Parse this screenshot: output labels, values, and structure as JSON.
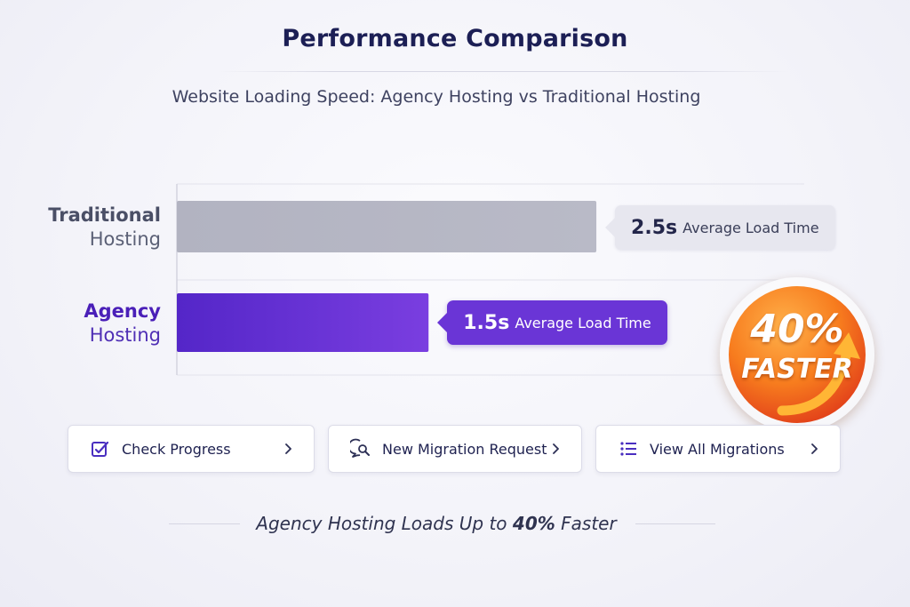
{
  "title": "Performance Comparison",
  "subtitle": "Website Loading Speed: Agency Hosting vs Traditional Hosting",
  "chart_data": {
    "type": "bar",
    "orientation": "horizontal",
    "categories": [
      "Traditional Hosting",
      "Agency Hosting"
    ],
    "category_lines": [
      [
        "Traditional",
        "Hosting"
      ],
      [
        "Agency",
        "Hosting"
      ]
    ],
    "values": [
      2.5,
      1.5
    ],
    "value_labels": [
      "2.5s",
      "1.5s"
    ],
    "unit": "s",
    "annotation": "Average Load Time",
    "xlim": [
      0,
      3.4
    ],
    "grid": true,
    "legend": "none",
    "colors": {
      "traditional": "#b5b6c3",
      "agency": "#5a2ad0",
      "agency_light": "#7b3fe0"
    }
  },
  "badge": {
    "percent": "40%",
    "word": "FASTER",
    "arrow_icon": "curved-up-arrow-icon"
  },
  "buttons": [
    {
      "label": "Check Progress",
      "icon": "edit-check-icon"
    },
    {
      "label": "New Migration Request",
      "icon": "chat-search-icon"
    },
    {
      "label": "View All Migrations",
      "icon": "list-icon"
    }
  ],
  "footer": {
    "prefix": "Agency Hosting Loads Up to ",
    "highlight": "40%",
    "suffix": " Faster"
  }
}
